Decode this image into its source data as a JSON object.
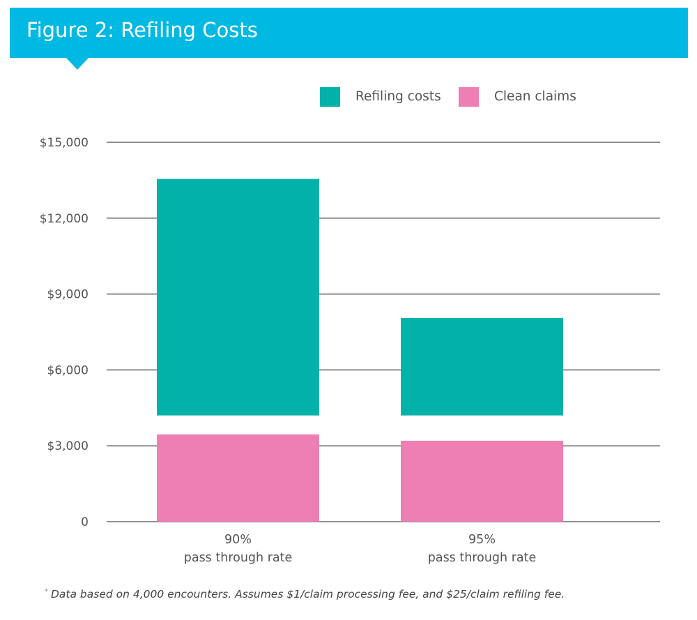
{
  "header": {
    "title": "Figure 2: Refiling Costs",
    "banner_color": "#00B9E3"
  },
  "legend": [
    {
      "label": "Refiling costs",
      "color": "#00B2A9"
    },
    {
      "label": "Clean claims",
      "color": "#EE7FB3"
    }
  ],
  "footnote": {
    "marker": "*",
    "text": "Data based on 4,000 encounters. Assumes $1/claim processing fee, and $25/claim refiling fee."
  },
  "chart_data": {
    "type": "bar",
    "title": "Figure 2: Refiling Costs",
    "xlabel": "",
    "ylabel": "",
    "categories": [
      {
        "line1": "90%",
        "line2": "pass through rate"
      },
      {
        "line1": "95%",
        "line2": "pass through rate"
      }
    ],
    "series": [
      {
        "name": "Refiling costs",
        "color": "#00B2A9",
        "floating": true,
        "ranges": [
          [
            4200,
            13550
          ],
          [
            4200,
            8050
          ]
        ]
      },
      {
        "name": "Clean claims",
        "color": "#EE7FB3",
        "values": [
          3450,
          3200
        ]
      }
    ],
    "ylim": [
      0,
      15000
    ],
    "yticks": [
      0,
      3000,
      6000,
      9000,
      12000,
      15000
    ],
    "ytick_labels": [
      "0",
      "$3,000",
      "$6,000",
      "$9,000",
      "$12,000",
      "$15,000"
    ],
    "grid": true,
    "legend_position": "top-right"
  }
}
